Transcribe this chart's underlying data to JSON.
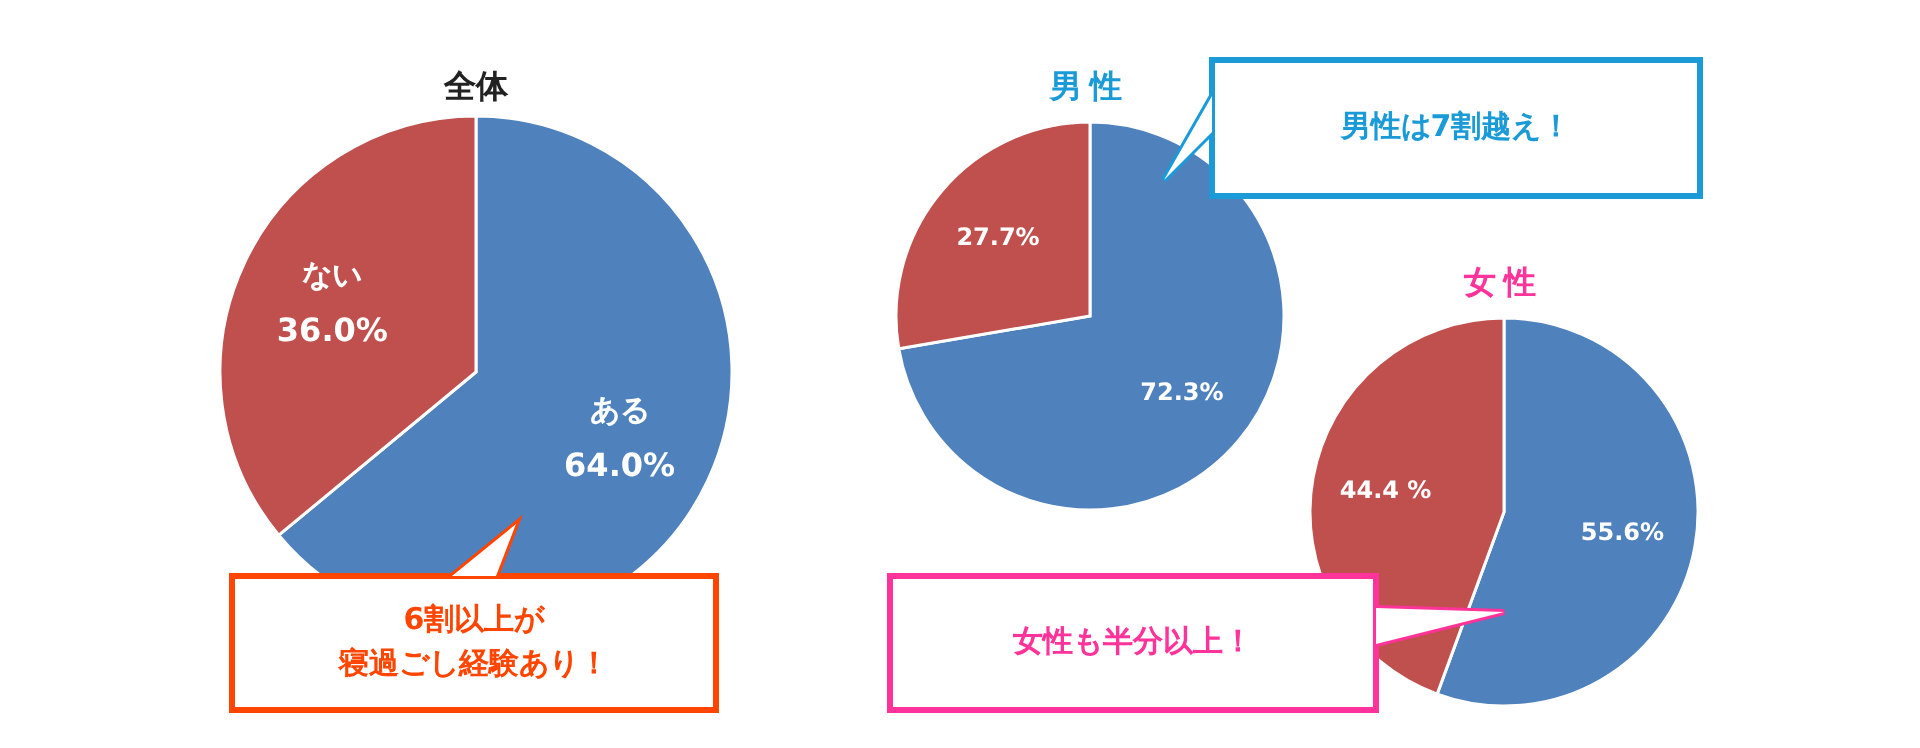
{
  "chart_data": [
    {
      "type": "pie",
      "title": "全体",
      "categories": [
        "ある",
        "ない"
      ],
      "values": [
        64.0,
        36.0
      ],
      "value_labels": [
        "64.0%",
        "36.0%"
      ],
      "colors": [
        "#4f81bd",
        "#c0504d"
      ],
      "annotations": [
        "6割以上が",
        "寝過ごし経験あり！"
      ]
    },
    {
      "type": "pie",
      "title": "男性",
      "categories": [
        null,
        null
      ],
      "values": [
        72.3,
        27.7
      ],
      "value_labels": [
        "72.3%",
        "27.7%"
      ],
      "colors": [
        "#4f81bd",
        "#c0504d"
      ],
      "annotations": [
        "男性は7割越え！"
      ]
    },
    {
      "type": "pie",
      "title": "女性",
      "categories": [
        null,
        null
      ],
      "values": [
        55.6,
        44.4
      ],
      "value_labels": [
        "55.6%",
        "44.4 %"
      ],
      "colors": [
        "#4f81bd",
        "#c0504d"
      ],
      "annotations": [
        "女性も半分以上！"
      ]
    }
  ]
}
